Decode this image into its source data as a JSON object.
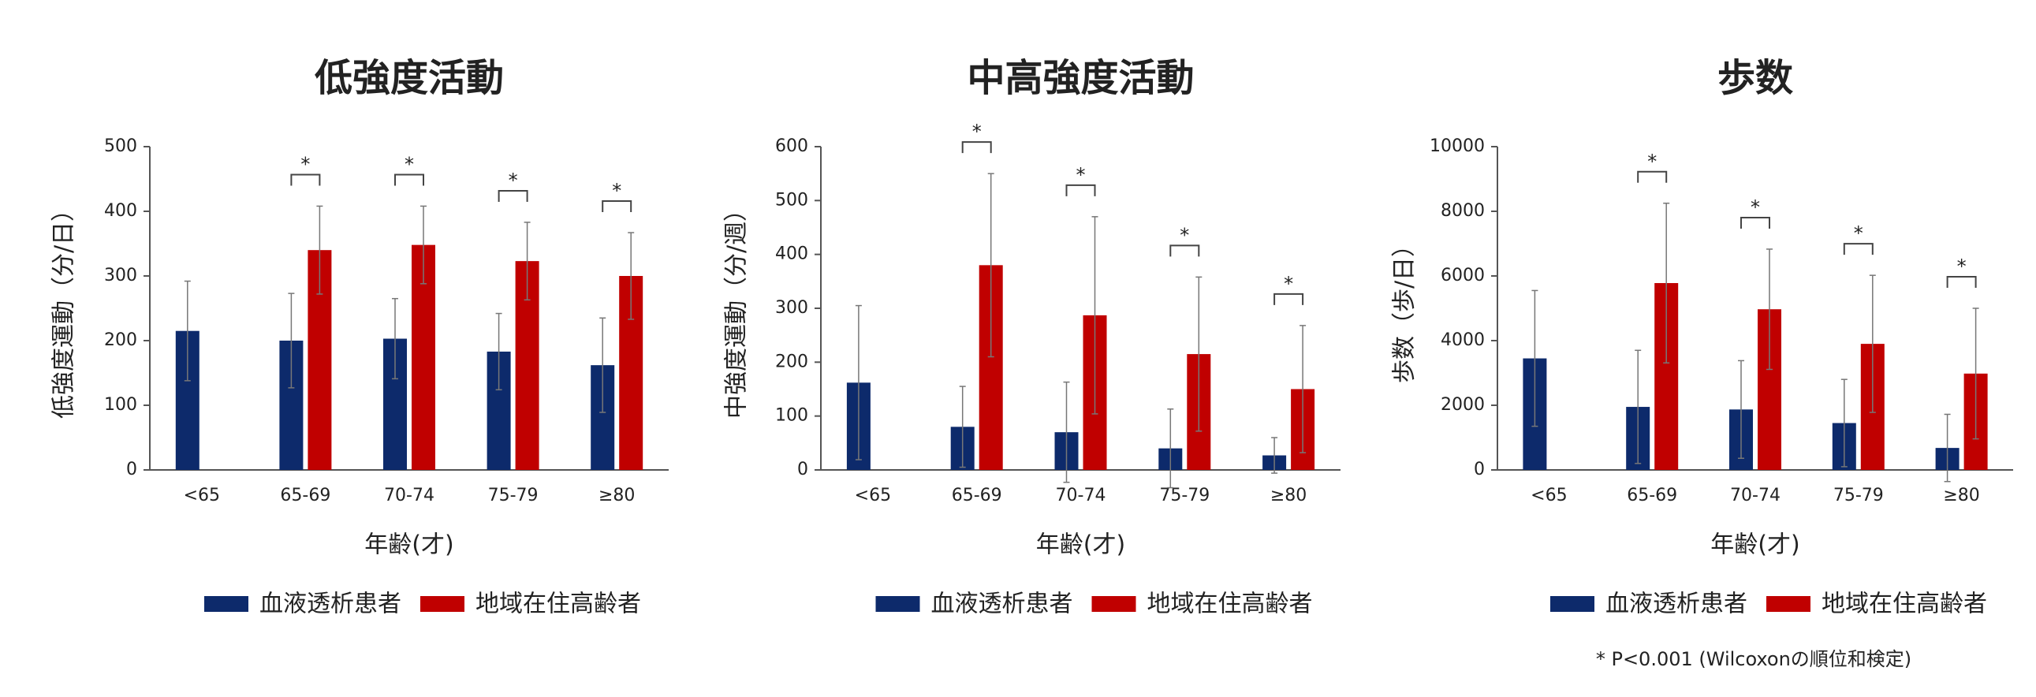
{
  "chart_data": [
    {
      "type": "bar",
      "title": "低強度活動",
      "y_label": "低強度運動（分/日）",
      "x_label": "年齢(才)",
      "categories": [
        "<65",
        "65-69",
        "70-74",
        "75-79",
        "≥80"
      ],
      "series": [
        {
          "name": "血液透析患者",
          "color": "#0d2a6b",
          "label_color": "#000000",
          "values": [
            215,
            200,
            203,
            183,
            162
          ],
          "errors": [
            77,
            73,
            62,
            59,
            73
          ]
        },
        {
          "name": "地域在住高齢者",
          "color": "#c00000",
          "label_color": "#c00000",
          "values": [
            null,
            340,
            348,
            323,
            300
          ],
          "errors": [
            null,
            68,
            60,
            60,
            67
          ]
        }
      ],
      "significance": [
        null,
        "*",
        "*",
        "*",
        "*"
      ],
      "ylim": [
        0,
        500
      ],
      "yticks": [
        0,
        100,
        200,
        300,
        400,
        500
      ]
    },
    {
      "type": "bar",
      "title": "中高強度活動",
      "y_label": "中強度運動（分/週）",
      "x_label": "年齢(才)",
      "categories": [
        "<65",
        "65-69",
        "70-74",
        "75-79",
        "≥80"
      ],
      "series": [
        {
          "name": "血液透析患者",
          "color": "#0d2a6b",
          "label_color": "#000000",
          "values": [
            162,
            80,
            70,
            40,
            27
          ],
          "errors": [
            143,
            75,
            93,
            73,
            33
          ]
        },
        {
          "name": "地域在住高齢者",
          "color": "#c00000",
          "label_color": "#c00000",
          "values": [
            null,
            380,
            287,
            215,
            150
          ],
          "errors": [
            null,
            170,
            183,
            143,
            118
          ]
        }
      ],
      "significance": [
        null,
        "*",
        "*",
        "*",
        "*"
      ],
      "ylim": [
        0,
        600
      ],
      "yticks": [
        0,
        100,
        200,
        300,
        400,
        500,
        600
      ]
    },
    {
      "type": "bar",
      "title": "歩数",
      "y_label": "歩数（歩/日）",
      "x_label": "年齢(才)",
      "categories": [
        "<65",
        "65-69",
        "70-74",
        "75-79",
        "≥80"
      ],
      "series": [
        {
          "name": "血液透析患者",
          "color": "#0d2a6b",
          "label_color": "#000000",
          "values": [
            3450,
            1950,
            1870,
            1450,
            680
          ],
          "errors": [
            2100,
            1750,
            1510,
            1350,
            1040
          ]
        },
        {
          "name": "地域在住高齢者",
          "color": "#c00000",
          "label_color": "#c00000",
          "values": [
            null,
            5780,
            4970,
            3900,
            2980
          ],
          "errors": [
            null,
            2470,
            1860,
            2120,
            2020
          ]
        }
      ],
      "significance": [
        null,
        "*",
        "*",
        "*",
        "*"
      ],
      "ylim": [
        0,
        10000
      ],
      "yticks": [
        0,
        2000,
        4000,
        6000,
        8000,
        10000
      ]
    }
  ],
  "footnote": "* P<0.001 (Wilcoxonの順位和検定)"
}
